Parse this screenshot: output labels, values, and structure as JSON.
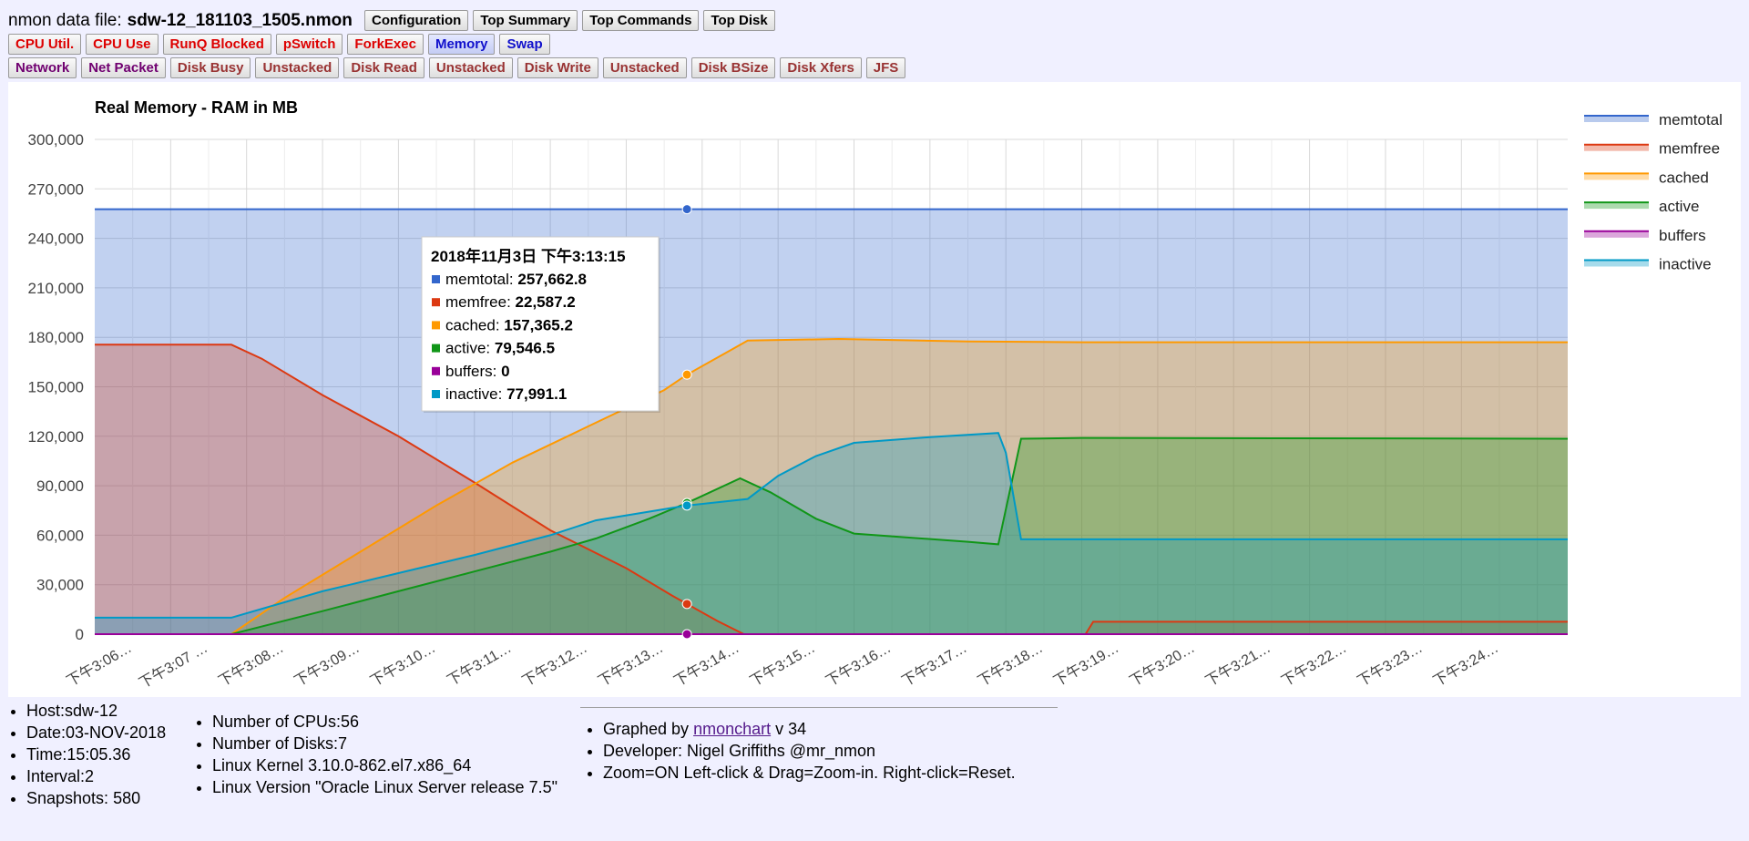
{
  "header": {
    "label": "nmon data file:",
    "filename": "sdw-12_181103_1505.nmon"
  },
  "button_rows": [
    [
      {
        "id": "configuration",
        "label": "Configuration",
        "color": "black"
      },
      {
        "id": "top-summary",
        "label": "Top Summary",
        "color": "black"
      },
      {
        "id": "top-commands",
        "label": "Top Commands",
        "color": "black"
      },
      {
        "id": "top-disk",
        "label": "Top Disk",
        "color": "black"
      }
    ],
    [
      {
        "id": "cpu-util",
        "label": "CPU Util.",
        "color": "red"
      },
      {
        "id": "cpu-use",
        "label": "CPU Use",
        "color": "red"
      },
      {
        "id": "runq-blocked",
        "label": "RunQ Blocked",
        "color": "red"
      },
      {
        "id": "pswitch",
        "label": "pSwitch",
        "color": "red"
      },
      {
        "id": "forkexec",
        "label": "ForkExec",
        "color": "red"
      },
      {
        "id": "memory",
        "label": "Memory",
        "color": "blue",
        "active": true
      },
      {
        "id": "swap",
        "label": "Swap",
        "color": "blue"
      }
    ],
    [
      {
        "id": "network",
        "label": "Network",
        "color": "purple"
      },
      {
        "id": "net-packet",
        "label": "Net Packet",
        "color": "purple"
      },
      {
        "id": "disk-busy",
        "label": "Disk Busy",
        "color": "brown"
      },
      {
        "id": "disk-busy-unstacked",
        "label": "Unstacked",
        "color": "brown"
      },
      {
        "id": "disk-read",
        "label": "Disk Read",
        "color": "brown"
      },
      {
        "id": "disk-read-unstacked",
        "label": "Unstacked",
        "color": "brown"
      },
      {
        "id": "disk-write",
        "label": "Disk Write",
        "color": "brown"
      },
      {
        "id": "disk-write-unstacked",
        "label": "Unstacked",
        "color": "brown"
      },
      {
        "id": "disk-bsize",
        "label": "Disk BSize",
        "color": "brown"
      },
      {
        "id": "disk-xfers",
        "label": "Disk Xfers",
        "color": "brown"
      },
      {
        "id": "jfs",
        "label": "JFS",
        "color": "brown"
      }
    ]
  ],
  "chart_data": {
    "type": "area",
    "title": "Real Memory - RAM in MB",
    "ylim": [
      0,
      300000
    ],
    "yticks": [
      0,
      30000,
      60000,
      90000,
      120000,
      150000,
      180000,
      210000,
      240000,
      270000,
      300000
    ],
    "ytick_labels": [
      "0",
      "30,000",
      "60,000",
      "90,000",
      "120,000",
      "150,000",
      "180,000",
      "210,000",
      "240,000",
      "270,000",
      "300,000"
    ],
    "xlim": [
      0,
      19.4
    ],
    "x_unit": "minutes after 下午3:06",
    "xtick_labels": [
      "下午3:06…",
      "下午3:07 …",
      "下午3:08…",
      "下午3:09…",
      "下午3:10…",
      "下午3:11…",
      "下午3:12…",
      "下午3:13…",
      "下午3:14…",
      "下午3:15…",
      "下午3:16…",
      "下午3:17…",
      "下午3:18…",
      "下午3:19…",
      "下午3:20…",
      "下午3:21…",
      "下午3:22…",
      "下午3:23…",
      "下午3:24…"
    ],
    "grid": true,
    "legend_position": "right",
    "series": [
      {
        "name": "memtotal",
        "color": "#3366cc",
        "points": [
          [
            0,
            257662.8
          ],
          [
            19.4,
            257662.8
          ]
        ]
      },
      {
        "name": "memfree",
        "color": "#dc3912",
        "points": [
          [
            0,
            175500
          ],
          [
            1.8,
            175500
          ],
          [
            2.2,
            167000
          ],
          [
            3,
            145000
          ],
          [
            4,
            120000
          ],
          [
            5,
            92000
          ],
          [
            6,
            63000
          ],
          [
            7,
            40000
          ],
          [
            7.6,
            23500
          ],
          [
            8.2,
            8000
          ],
          [
            8.55,
            0
          ],
          [
            13.05,
            0
          ],
          [
            13.15,
            7500
          ],
          [
            19.4,
            7500
          ]
        ]
      },
      {
        "name": "cached",
        "color": "#ff9900",
        "points": [
          [
            0,
            0
          ],
          [
            1.8,
            0
          ],
          [
            2.5,
            22000
          ],
          [
            3.5,
            50000
          ],
          [
            4.5,
            78000
          ],
          [
            5.5,
            104000
          ],
          [
            6.5,
            126000
          ],
          [
            7.5,
            148000
          ],
          [
            7.8,
            157365.2
          ],
          [
            8.6,
            178000
          ],
          [
            9.8,
            179000
          ],
          [
            11.5,
            177500
          ],
          [
            13,
            177000
          ],
          [
            19.4,
            177000
          ]
        ]
      },
      {
        "name": "active",
        "color": "#109618",
        "points": [
          [
            0,
            0
          ],
          [
            1.8,
            0
          ],
          [
            3,
            14000
          ],
          [
            4,
            26000
          ],
          [
            5,
            38000
          ],
          [
            6,
            50000
          ],
          [
            6.6,
            58000
          ],
          [
            7.3,
            70000
          ],
          [
            7.8,
            79546.5
          ],
          [
            8.5,
            94500
          ],
          [
            8.9,
            86000
          ],
          [
            9.5,
            70000
          ],
          [
            10,
            61000
          ],
          [
            11.5,
            56000
          ],
          [
            11.9,
            54500
          ],
          [
            12.2,
            118500
          ],
          [
            13,
            119000
          ],
          [
            19.4,
            118500
          ]
        ]
      },
      {
        "name": "buffers",
        "color": "#990099",
        "points": [
          [
            0,
            0
          ],
          [
            19.4,
            0
          ]
        ]
      },
      {
        "name": "inactive",
        "color": "#0099c6",
        "points": [
          [
            0,
            10000
          ],
          [
            1.8,
            10000
          ],
          [
            3,
            26000
          ],
          [
            4,
            37000
          ],
          [
            5,
            48000
          ],
          [
            6,
            60000
          ],
          [
            6.6,
            69000
          ],
          [
            7.8,
            77991.1
          ],
          [
            8.6,
            82000
          ],
          [
            9,
            96000
          ],
          [
            9.5,
            108000
          ],
          [
            10,
            116000
          ],
          [
            11,
            119500
          ],
          [
            11.9,
            122000
          ],
          [
            12.0,
            110000
          ],
          [
            12.2,
            57500
          ],
          [
            19.4,
            57500
          ]
        ]
      }
    ],
    "tooltip": {
      "x": 7.8,
      "title": "2018年11月3日 下午3:13:15",
      "items": [
        {
          "name": "memtotal",
          "value": "257,662.8",
          "color": "#3366cc"
        },
        {
          "name": "memfree",
          "value": "22,587.2",
          "color": "#dc3912"
        },
        {
          "name": "cached",
          "value": "157,365.2",
          "color": "#ff9900"
        },
        {
          "name": "active",
          "value": "79,546.5",
          "color": "#109618"
        },
        {
          "name": "buffers",
          "value": "0",
          "color": "#990099"
        },
        {
          "name": "inactive",
          "value": "77,991.1",
          "color": "#0099c6"
        }
      ]
    }
  },
  "info": {
    "col1": [
      "Host:sdw-12",
      "Date:03-NOV-2018",
      "Time:15:05.36",
      "Interval:2",
      "Snapshots: 580"
    ],
    "col2": [
      "Number of CPUs:56",
      "Number of Disks:7",
      "Linux Kernel 3.10.0-862.el7.x86_64",
      "Linux Version \"Oracle Linux Server release 7.5\""
    ],
    "credits": {
      "graphed_prefix": "Graphed by",
      "graphed_link": "nmonchart",
      "graphed_suffix": "v 34",
      "developer": "Developer: Nigel Griffiths @mr_nmon",
      "zoom": "Zoom=ON Left-click & Drag=Zoom-in. Right-click=Reset."
    }
  }
}
